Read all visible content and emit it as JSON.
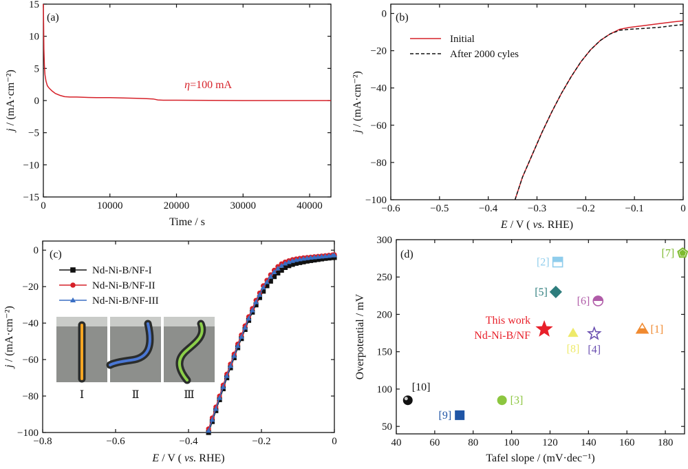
{
  "chart_data": [
    {
      "panel": "(a)",
      "type": "line",
      "xlabel_italic": "",
      "xlabel": "Time / s",
      "ylabel_italic": "j",
      "ylabel": " / (mA·cm⁻²)",
      "xlim": [
        0,
        43200
      ],
      "ylim": [
        -15,
        15
      ],
      "xticks": [
        0,
        10000,
        20000,
        30000,
        40000
      ],
      "yticks": [
        -15,
        -10,
        -5,
        0,
        5,
        10,
        15
      ],
      "annotation": {
        "italic": "η",
        "text": "=100 mA",
        "x": 21200,
        "y": 1.3,
        "color": "#d62028"
      },
      "series": [
        {
          "color": "#d62028",
          "x": [
            0,
            40,
            80,
            150,
            250,
            400,
            600,
            900,
            1300,
            1800,
            2500,
            3200,
            4000,
            5000,
            6000,
            8000,
            10000,
            12000,
            14000,
            15500,
            16500,
            17200,
            18000,
            20000,
            25000,
            30000,
            35000,
            40000,
            43200
          ],
          "y": [
            15,
            12,
            8,
            5.5,
            4,
            3,
            2.3,
            1.9,
            1.5,
            1.1,
            0.8,
            0.6,
            0.55,
            0.55,
            0.5,
            0.45,
            0.45,
            0.4,
            0.35,
            0.3,
            0.25,
            0.1,
            0.05,
            0.05,
            0.02,
            0.0,
            0.0,
            0.0,
            0.0
          ]
        }
      ]
    },
    {
      "panel": "(b)",
      "type": "line",
      "xlabel_italic": "E",
      "xlabel": " / V ( vs. RHE)",
      "ylabel_italic": "j",
      "ylabel": " / (mA·cm⁻²)",
      "xlim": [
        -0.6,
        0
      ],
      "ylim": [
        -100,
        5
      ],
      "xticks": [
        -0.6,
        -0.5,
        -0.4,
        -0.3,
        -0.2,
        -0.1,
        0
      ],
      "xtick_labels": [
        "−0.6",
        "−0.5",
        "−0.4",
        "−0.3",
        "−0.2",
        "−0.1",
        "0"
      ],
      "yticks": [
        -100,
        -80,
        -60,
        -40,
        -20,
        0
      ],
      "ytick_labels": [
        "−100",
        "−80",
        "−60",
        "−40",
        "−20",
        "0"
      ],
      "legend_position": "top-left",
      "series": [
        {
          "name": "Initial",
          "color": "#d62028",
          "dash": "solid",
          "x": [
            -0.345,
            -0.33,
            -0.31,
            -0.29,
            -0.27,
            -0.25,
            -0.23,
            -0.21,
            -0.19,
            -0.17,
            -0.15,
            -0.13,
            -0.11,
            -0.08,
            -0.05,
            -0.02,
            0
          ],
          "y": [
            -100,
            -88,
            -76,
            -64,
            -53,
            -43,
            -34,
            -26,
            -19.5,
            -14.5,
            -11,
            -8.5,
            -7.5,
            -6.5,
            -5.5,
            -4.5,
            -4
          ]
        },
        {
          "name": "After 2000 cyles",
          "color": "#111111",
          "dash": "dashed",
          "x": [
            -0.345,
            -0.33,
            -0.31,
            -0.29,
            -0.27,
            -0.25,
            -0.23,
            -0.21,
            -0.19,
            -0.17,
            -0.15,
            -0.13,
            -0.11,
            -0.08,
            -0.05,
            -0.02,
            0
          ],
          "y": [
            -100,
            -88,
            -76,
            -64,
            -53,
            -43,
            -34,
            -26,
            -19.5,
            -14.5,
            -11,
            -9,
            -8.5,
            -8,
            -7.5,
            -6.5,
            -6
          ]
        }
      ]
    },
    {
      "panel": "(c)",
      "type": "line",
      "xlabel_italic": "E",
      "xlabel": " / V ( vs. RHE)",
      "ylabel_italic": "j",
      "ylabel": " / (mA·cm⁻²)",
      "xlim": [
        -0.8,
        0
      ],
      "ylim": [
        -100,
        5
      ],
      "xticks": [
        -0.8,
        -0.6,
        -0.4,
        -0.2,
        0
      ],
      "xtick_labels": [
        "−0.8",
        "−0.6",
        "−0.4",
        "−0.2",
        "0"
      ],
      "yticks": [
        -100,
        -80,
        -60,
        -40,
        -20,
        0
      ],
      "ytick_labels": [
        "−100",
        "−80",
        "−60",
        "−40",
        "−20",
        "0"
      ],
      "legend_position": "top-left",
      "inset_labels": [
        "Ⅰ",
        "Ⅱ",
        "Ⅲ"
      ],
      "series": [
        {
          "name": "Nd-Ni-B/NF-I",
          "color": "#111111",
          "marker": "square",
          "x": [
            -0.345,
            -0.335,
            -0.325,
            -0.315,
            -0.305,
            -0.295,
            -0.285,
            -0.275,
            -0.265,
            -0.255,
            -0.245,
            -0.235,
            -0.225,
            -0.215,
            -0.205,
            -0.195,
            -0.185,
            -0.175,
            -0.165,
            -0.155,
            -0.145,
            -0.135,
            -0.125,
            -0.115,
            -0.105,
            -0.095,
            -0.085,
            -0.075,
            -0.065,
            -0.055,
            -0.045,
            -0.035,
            -0.025,
            -0.015,
            -0.005,
            0
          ],
          "y": [
            -100,
            -94,
            -88,
            -82,
            -76,
            -70,
            -64.5,
            -59,
            -53.5,
            -48.5,
            -43.5,
            -38.5,
            -34,
            -30,
            -26,
            -22.5,
            -19.5,
            -17,
            -14.5,
            -12.5,
            -11,
            -9.5,
            -8.5,
            -7.8,
            -7.2,
            -6.8,
            -6.4,
            -6,
            -5.7,
            -5.4,
            -5.1,
            -4.8,
            -4.5,
            -4.3,
            -4.1,
            -4
          ]
        },
        {
          "name": "Nd-Ni-B/NF-II",
          "color": "#d62028",
          "marker": "circle",
          "x": [
            -0.345,
            -0.335,
            -0.325,
            -0.315,
            -0.305,
            -0.295,
            -0.285,
            -0.275,
            -0.265,
            -0.255,
            -0.245,
            -0.235,
            -0.225,
            -0.215,
            -0.205,
            -0.195,
            -0.185,
            -0.175,
            -0.165,
            -0.155,
            -0.145,
            -0.135,
            -0.125,
            -0.115,
            -0.105,
            -0.095,
            -0.085,
            -0.075,
            -0.065,
            -0.055,
            -0.045,
            -0.035,
            -0.025,
            -0.015,
            -0.005,
            0
          ],
          "y": [
            -98,
            -92,
            -86,
            -80,
            -74,
            -68,
            -62.5,
            -57,
            -51.5,
            -46.5,
            -41.5,
            -36.5,
            -32,
            -27.5,
            -23.5,
            -19.5,
            -16.5,
            -13.5,
            -11,
            -9,
            -7.5,
            -6.5,
            -5.8,
            -5.2,
            -4.8,
            -4.5,
            -4.2,
            -4,
            -3.8,
            -3.6,
            -3.4,
            -3.2,
            -3,
            -2.8,
            -2.6,
            -2.5
          ]
        },
        {
          "name": "Nd-Ni-B/NF-III",
          "color": "#3a6fc4",
          "marker": "triangle",
          "x": [
            -0.345,
            -0.335,
            -0.325,
            -0.315,
            -0.305,
            -0.295,
            -0.285,
            -0.275,
            -0.265,
            -0.255,
            -0.245,
            -0.235,
            -0.225,
            -0.215,
            -0.205,
            -0.195,
            -0.185,
            -0.175,
            -0.165,
            -0.155,
            -0.145,
            -0.135,
            -0.125,
            -0.115,
            -0.105,
            -0.095,
            -0.085,
            -0.075,
            -0.065,
            -0.055,
            -0.045,
            -0.035,
            -0.025,
            -0.015,
            -0.005,
            0
          ],
          "y": [
            -99,
            -93,
            -87,
            -81,
            -75,
            -69,
            -63.5,
            -58,
            -52.5,
            -47.5,
            -42.5,
            -37.5,
            -33,
            -28.5,
            -24.5,
            -20.5,
            -17.5,
            -14.5,
            -12,
            -10,
            -8.5,
            -7.3,
            -6.5,
            -5.9,
            -5.4,
            -5,
            -4.7,
            -4.4,
            -4.1,
            -3.9,
            -3.7,
            -3.5,
            -3.3,
            -3.1,
            -2.9,
            -2.8
          ]
        }
      ]
    },
    {
      "panel": "(d)",
      "type": "scatter",
      "xlabel": "Tafel slope / (mV·dec⁻¹)",
      "ylabel": "Overpotential / mV",
      "xlim": [
        40,
        190
      ],
      "ylim": [
        40,
        300
      ],
      "xticks": [
        40,
        60,
        80,
        100,
        120,
        140,
        160,
        180
      ],
      "yticks": [
        50,
        100,
        150,
        200,
        250,
        300
      ],
      "points": [
        {
          "label": "[10]",
          "x": 46,
          "y": 85,
          "color": "#111111",
          "marker": "sphere",
          "label_side": "above"
        },
        {
          "label": "[9]",
          "x": 73,
          "y": 65,
          "color": "#1f55a6",
          "marker": "square",
          "label_side": "left"
        },
        {
          "label": "[3]",
          "x": 95,
          "y": 85,
          "color": "#8cc63f",
          "marker": "circle",
          "label_side": "right"
        },
        {
          "label": "[2]",
          "x": 124,
          "y": 270,
          "color": "#8fcdec",
          "marker": "half-square",
          "label_side": "left"
        },
        {
          "label": "[5]",
          "x": 123,
          "y": 230,
          "color": "#2e7d7d",
          "marker": "diamond",
          "label_side": "left"
        },
        {
          "label": "[6]",
          "x": 145,
          "y": 218,
          "color": "#b05ca8",
          "marker": "half-circle",
          "label_side": "left"
        },
        {
          "label": "[8]",
          "x": 132,
          "y": 175,
          "color": "#eeea6a",
          "marker": "triangle",
          "label_side": "below"
        },
        {
          "label": "[4]",
          "x": 143,
          "y": 174,
          "color": "#6a4fb0",
          "marker": "star-outline",
          "label_side": "below"
        },
        {
          "label": "[1]",
          "x": 168,
          "y": 180,
          "color": "#f08a30",
          "marker": "half-triangle",
          "label_side": "right"
        },
        {
          "label": "[7]",
          "x": 189,
          "y": 282,
          "color": "#7dba2f",
          "marker": "pentagon",
          "label_side": "left"
        },
        {
          "label": "This work",
          "label2": "Nd-Ni-B/NF",
          "x": 117,
          "y": 180,
          "color": "#e8202a",
          "marker": "star",
          "label_side": "left"
        }
      ]
    }
  ]
}
